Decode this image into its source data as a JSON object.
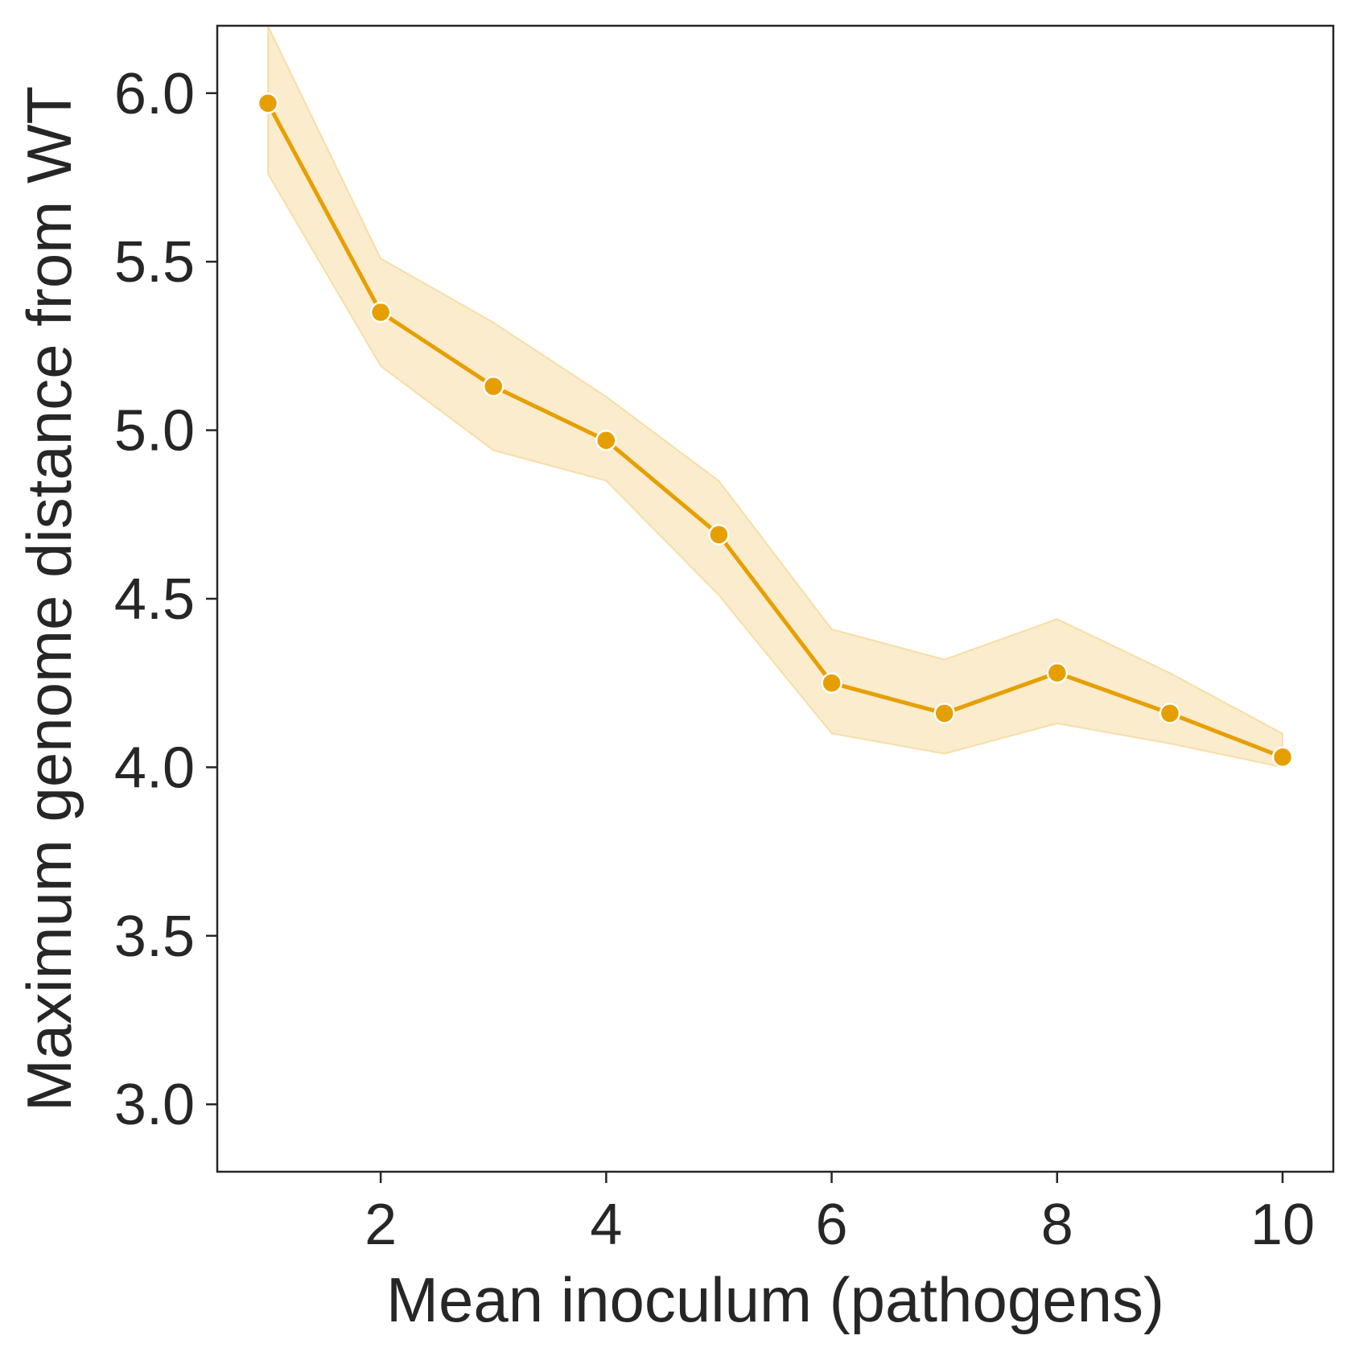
{
  "chart_data": {
    "type": "line",
    "title": "",
    "xlabel": "Mean inoculum (pathogens)",
    "ylabel": "Maximum genome distance from WT",
    "xlim": [
      0.55,
      10.45
    ],
    "ylim": [
      2.8,
      6.2
    ],
    "xticks": [
      2,
      4,
      6,
      8,
      10
    ],
    "yticks": [
      3.0,
      3.5,
      4.0,
      4.5,
      5.0,
      5.5,
      6.0
    ],
    "grid": false,
    "legend": "none",
    "colors": {
      "line": "#e69f00",
      "band": "#e69f00",
      "axes": "#262626",
      "marker_edge": "#ffffff"
    },
    "series": [
      {
        "x": [
          1,
          2,
          3,
          4,
          5,
          6,
          7,
          8,
          9,
          10
        ],
        "y": [
          5.97,
          5.35,
          5.13,
          4.97,
          4.69,
          4.25,
          4.16,
          4.28,
          4.16,
          4.03
        ],
        "ci_lower": [
          5.76,
          5.19,
          4.94,
          4.85,
          4.51,
          4.1,
          4.04,
          4.13,
          4.07,
          4.0
        ],
        "ci_upper": [
          6.2,
          5.51,
          5.32,
          5.1,
          4.85,
          4.41,
          4.32,
          4.44,
          4.28,
          4.1
        ]
      }
    ]
  }
}
